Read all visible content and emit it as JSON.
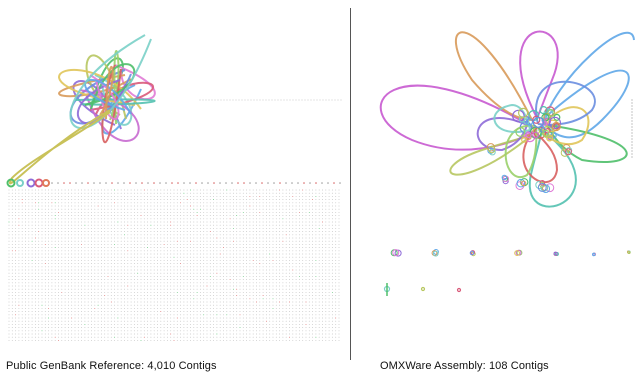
{
  "left": {
    "caption": "Public GenBank Reference: 4,010 Contigs"
  },
  "right": {
    "caption": "OMXWare Assembly: 108 Contigs"
  },
  "palette": [
    "#8e6bd8",
    "#4fbf6a",
    "#e07bd6",
    "#5fa7e8",
    "#d89a5a",
    "#7ad0c8",
    "#b7c760",
    "#d95b7a",
    "#6a8ee0",
    "#9ad06a",
    "#c86ad0",
    "#e0c55a",
    "#53c1b0",
    "#d86060"
  ]
}
